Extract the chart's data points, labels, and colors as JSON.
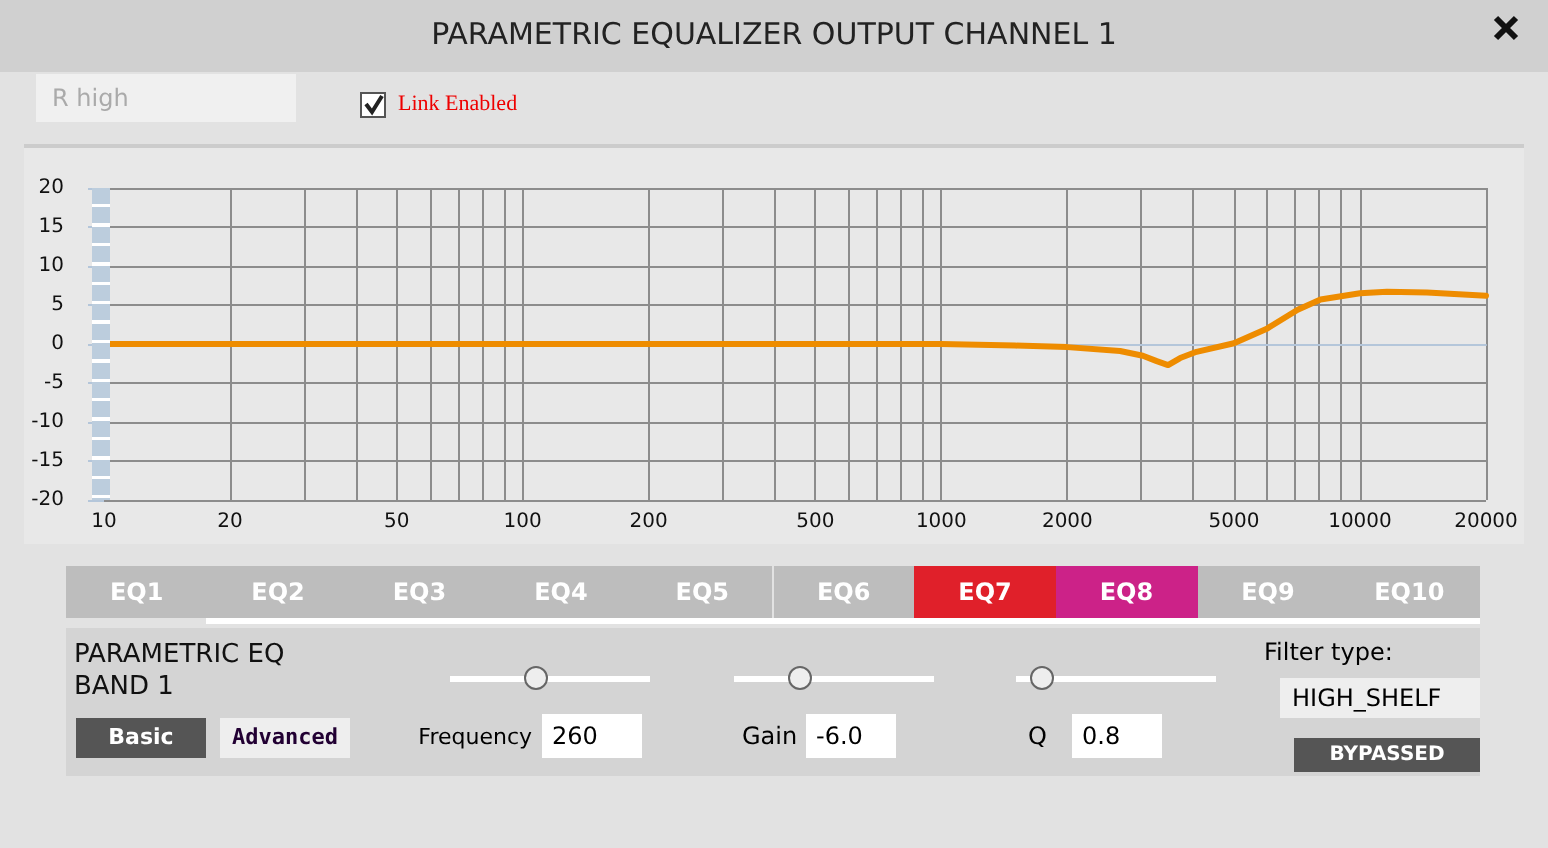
{
  "chart_data": {
    "type": "line",
    "title": "PARAMETRIC EQUALIZER OUTPUT CHANNEL 1",
    "x": [
      10,
      100,
      500,
      1000,
      1500,
      2000,
      2673,
      3030,
      3270,
      3480,
      3720,
      4070,
      5000,
      6010,
      7100,
      8050,
      10000,
      11600,
      14460,
      20000
    ],
    "series": [
      {
        "color": "#ee8c00",
        "values": [
          0,
          0,
          0,
          0,
          -0.2,
          -0.4,
          -0.9,
          -1.5,
          -2.2,
          -2.7,
          -1.8,
          -1.0,
          0.1,
          2.0,
          4.4,
          5.7,
          6.5,
          6.7,
          6.6,
          6.2
        ]
      }
    ],
    "log": "x",
    "xlim": [
      10,
      20000
    ],
    "xticks": [
      10,
      20,
      {
        "value": 30,
        "label": null
      },
      {
        "value": 40,
        "label": null
      },
      50,
      {
        "value": 60,
        "label": null
      },
      {
        "value": 70,
        "label": null
      },
      {
        "value": 80,
        "label": null
      },
      {
        "value": 90,
        "label": null
      },
      100,
      200,
      {
        "value": 300,
        "label": null
      },
      {
        "value": 400,
        "label": null
      },
      500,
      {
        "value": 600,
        "label": null
      },
      {
        "value": 700,
        "label": null
      },
      {
        "value": 800,
        "label": null
      },
      {
        "value": 900,
        "label": null
      },
      1000,
      2000,
      {
        "value": 3000,
        "label": null
      },
      {
        "value": 4000,
        "label": null
      },
      5000,
      {
        "value": 6000,
        "label": null
      },
      {
        "value": 7000,
        "label": null
      },
      {
        "value": 8000,
        "label": null
      },
      {
        "value": 9000,
        "label": null
      },
      10000,
      20000
    ],
    "ylim": [
      -20,
      20
    ],
    "yticks": [
      -20,
      -15,
      -10,
      -5,
      0,
      5,
      10,
      15,
      20
    ],
    "grid": true,
    "marker": "none",
    "line_style": "solid",
    "annotations": [
      "R high",
      "Link Enabled",
      "EQ1",
      "EQ2",
      "EQ3",
      "EQ4",
      "EQ5",
      "EQ6",
      "EQ7",
      "EQ8",
      "EQ9",
      "EQ10",
      "PARAMETRIC EQ",
      "BAND 1",
      "Basic",
      "Advanced",
      "Frequency",
      "260",
      "Gain",
      "-6.0",
      "Q",
      "0.8",
      "Filter type:",
      "HIGH_SHELF",
      "BYPASSED"
    ]
  }
}
